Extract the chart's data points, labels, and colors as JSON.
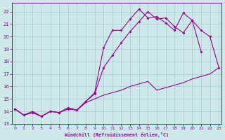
{
  "xlabel": "Windchill (Refroidissement éolien,°C)",
  "bg_color": "#cce8e8",
  "line_color": "#990099",
  "grid_color": "#aacccc",
  "xlim": [
    -0.3,
    23.3
  ],
  "ylim": [
    13.0,
    22.7
  ],
  "xticks": [
    0,
    1,
    2,
    3,
    4,
    5,
    6,
    7,
    8,
    9,
    10,
    11,
    12,
    13,
    14,
    15,
    16,
    17,
    18,
    19,
    20,
    21,
    22,
    23
  ],
  "yticks": [
    13,
    14,
    15,
    16,
    17,
    18,
    19,
    20,
    21,
    22
  ],
  "line1_x": [
    0,
    1,
    2,
    3,
    4,
    5,
    6,
    7,
    8,
    9,
    10,
    11,
    12,
    13,
    14,
    15,
    16,
    17,
    18,
    19,
    20,
    21
  ],
  "line1_y": [
    14.2,
    13.7,
    13.9,
    13.6,
    14.0,
    13.9,
    14.3,
    14.1,
    14.8,
    15.5,
    19.1,
    20.5,
    20.5,
    21.4,
    22.2,
    21.5,
    21.6,
    21.1,
    20.5,
    21.9,
    21.3,
    18.8
  ],
  "line2_x": [
    0,
    1,
    2,
    3,
    4,
    5,
    6,
    7,
    8,
    9,
    10,
    11,
    12,
    13,
    14,
    15,
    16,
    17,
    18,
    19,
    20,
    21,
    22,
    23
  ],
  "line2_y": [
    14.2,
    13.7,
    13.9,
    13.6,
    14.0,
    13.9,
    14.2,
    14.1,
    14.8,
    15.4,
    17.5,
    18.5,
    19.5,
    20.4,
    21.2,
    22.0,
    21.4,
    21.5,
    20.8,
    20.3,
    21.3,
    20.5,
    20.0,
    17.5
  ],
  "line3_x": [
    0,
    1,
    2,
    3,
    4,
    5,
    6,
    7,
    8,
    9,
    10,
    11,
    12,
    13,
    14,
    15,
    16,
    17,
    18,
    19,
    20,
    21,
    22,
    23
  ],
  "line3_y": [
    14.2,
    13.7,
    14.0,
    13.6,
    14.0,
    13.9,
    14.2,
    14.1,
    14.7,
    15.0,
    15.3,
    15.5,
    15.7,
    16.0,
    16.2,
    16.4,
    15.7,
    15.9,
    16.1,
    16.3,
    16.6,
    16.8,
    17.0,
    17.5
  ]
}
